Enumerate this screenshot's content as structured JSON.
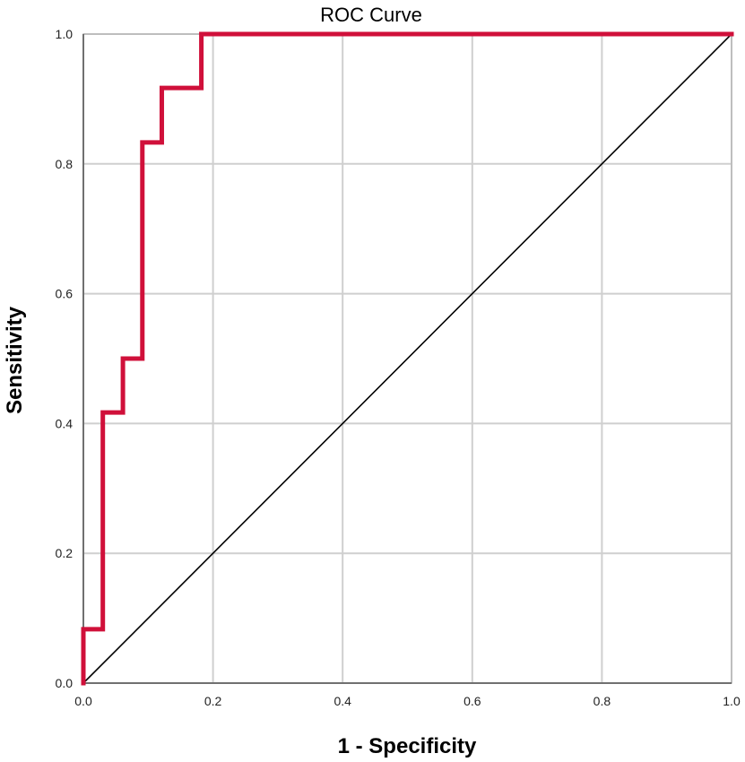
{
  "chart_data": {
    "type": "line",
    "title": "ROC Curve",
    "xlabel": "1 - Specificity",
    "ylabel": "Sensitivity",
    "xlim": [
      0.0,
      1.0
    ],
    "ylim": [
      0.0,
      1.0
    ],
    "x_ticks": [
      "0.0",
      "0.2",
      "0.4",
      "0.6",
      "0.8",
      "1.0"
    ],
    "y_ticks": [
      "0.0",
      "0.2",
      "0.4",
      "0.6",
      "0.8",
      "1.0"
    ],
    "grid": true,
    "series": [
      {
        "color": "#d0103a",
        "points": [
          [
            0.0,
            0.0
          ],
          [
            0.0,
            0.083
          ],
          [
            0.03,
            0.083
          ],
          [
            0.03,
            0.417
          ],
          [
            0.061,
            0.417
          ],
          [
            0.061,
            0.5
          ],
          [
            0.091,
            0.5
          ],
          [
            0.091,
            0.833
          ],
          [
            0.121,
            0.833
          ],
          [
            0.121,
            0.917
          ],
          [
            0.182,
            0.917
          ],
          [
            0.182,
            1.0
          ],
          [
            1.0,
            1.0
          ]
        ]
      },
      {
        "color": "#000000",
        "points": [
          [
            0.0,
            0.0
          ],
          [
            1.0,
            1.0
          ]
        ]
      }
    ]
  }
}
